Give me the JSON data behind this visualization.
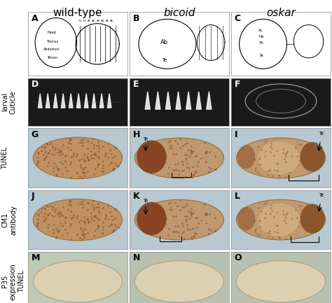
{
  "col_headers": [
    "wild-type",
    "bicoid",
    "oskar"
  ],
  "col_header_styles": [
    "normal",
    "italic",
    "italic"
  ],
  "col_header_fontsize": 11,
  "row_labels": [
    "larval\nCuticle",
    "TUNEL",
    "CM1\nantibody",
    "P35\nexpression\nTUNEL"
  ],
  "row_label_fontsize": 7,
  "panel_letter_fontsize": 9,
  "n_rows": 5,
  "n_cols": 3,
  "figsize": [
    4.74,
    4.33
  ],
  "dpi": 100
}
